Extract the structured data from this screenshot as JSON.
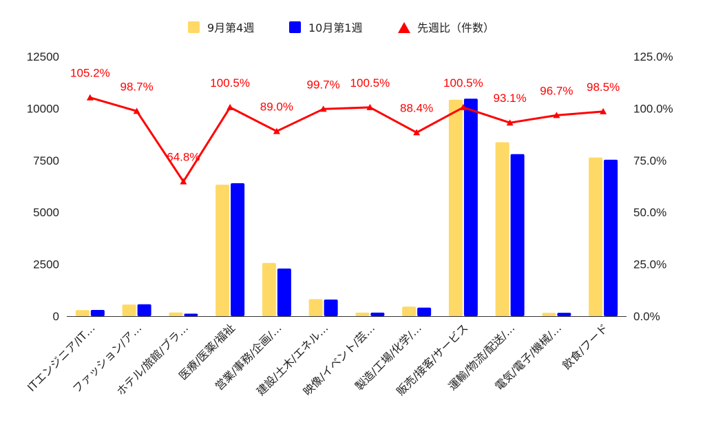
{
  "chart_data": {
    "type": "bar",
    "categories": [
      "ITエンジニア/IT…",
      "ファッション/ア…",
      "ホテル/旅館/ブラ…",
      "医療/医薬/福祉",
      "営業/事務/企画/…",
      "建設/土木/エネル…",
      "映像/イベント/芸…",
      "製造/工場/化学/…",
      "販売/接客/サービス",
      "運輸/物流/配送/…",
      "電気/電子/機械/…",
      "飲食/フード"
    ],
    "series": [
      {
        "name": "9月第4週",
        "type": "bar",
        "axis": "left",
        "color": "#ffd966",
        "values": [
          290,
          560,
          180,
          6330,
          2560,
          820,
          170,
          460,
          10420,
          8370,
          160,
          7640
        ]
      },
      {
        "name": "10月第1週",
        "type": "bar",
        "axis": "left",
        "color": "#0000ff",
        "values": [
          300,
          570,
          120,
          6400,
          2290,
          800,
          170,
          410,
          10470,
          7800,
          160,
          7530
        ]
      },
      {
        "name": "先週比（件数）",
        "type": "line",
        "axis": "right",
        "color": "#ff0000",
        "values": [
          105.2,
          98.7,
          64.8,
          100.5,
          89.0,
          99.7,
          100.5,
          88.4,
          100.5,
          93.1,
          96.7,
          98.5
        ],
        "labels": [
          "105.2%",
          "98.7%",
          "64.8%",
          "100.5%",
          "89.0%",
          "99.7%",
          "100.5%",
          "88.4%",
          "100.5%",
          "93.1%",
          "96.7%",
          "98.5%"
        ]
      }
    ],
    "y_left": {
      "min": 0,
      "max": 12500,
      "ticks": [
        "0",
        "2500",
        "5000",
        "7500",
        "10000",
        "12500"
      ]
    },
    "y_right": {
      "min": 0,
      "max": 125,
      "ticks": [
        "0.0%",
        "25.0%",
        "50.0%",
        "75.0%",
        "100.0%",
        "125.0%"
      ]
    },
    "legend": {
      "position": "top-center"
    },
    "grid": false
  }
}
